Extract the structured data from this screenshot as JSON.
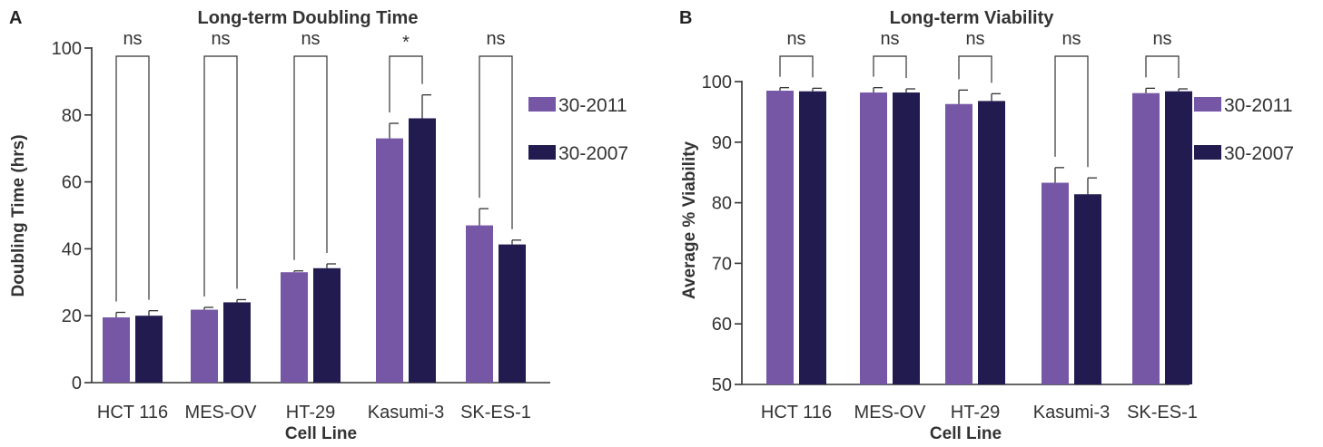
{
  "colors": {
    "series1": "#7557a6",
    "series2": "#221b4f",
    "axis": "#333333"
  },
  "chart_data": [
    {
      "panel": "A",
      "type": "bar",
      "title": "Long-term Doubling Time",
      "xlabel": "Cell Line",
      "ylabel": "Doubling Time (hrs)",
      "ylim": [
        0,
        100
      ],
      "yticks": [
        0,
        20,
        40,
        60,
        80,
        100
      ],
      "grid": false,
      "legend_position": "right",
      "categories": [
        "HCT 116",
        "MES-OV",
        "HT-29",
        "Kasumi-3",
        "SK-ES-1"
      ],
      "series": [
        {
          "name": "30-2011",
          "values": [
            19.5,
            21.8,
            33.0,
            73.0,
            47.0
          ],
          "errors": [
            1.5,
            0.7,
            0.4,
            4.5,
            5.0
          ]
        },
        {
          "name": "30-2007",
          "values": [
            20.0,
            24.0,
            34.2,
            79.0,
            41.3
          ],
          "errors": [
            1.5,
            0.8,
            1.3,
            7.0,
            1.3
          ]
        }
      ],
      "significance": [
        "ns",
        "ns",
        "ns",
        "*",
        "ns"
      ]
    },
    {
      "panel": "B",
      "type": "bar",
      "title": "Long-term Viability",
      "xlabel": "Cell Line",
      "ylabel": "Average % Viability",
      "ylim": [
        50,
        100
      ],
      "yticks": [
        50,
        60,
        70,
        80,
        90,
        100
      ],
      "grid": false,
      "legend_position": "right",
      "categories": [
        "HCT 116",
        "MES-OV",
        "HT-29",
        "Kasumi-3",
        "SK-ES-1"
      ],
      "series": [
        {
          "name": "30-2011",
          "values": [
            98.5,
            98.2,
            96.3,
            83.3,
            98.1
          ],
          "errors": [
            0.5,
            0.8,
            2.3,
            2.5,
            0.8
          ]
        },
        {
          "name": "30-2007",
          "values": [
            98.4,
            98.2,
            96.8,
            81.4,
            98.4
          ],
          "errors": [
            0.5,
            0.6,
            1.2,
            2.7,
            0.4
          ]
        }
      ],
      "significance": [
        "ns",
        "ns",
        "ns",
        "ns",
        "ns"
      ]
    }
  ]
}
